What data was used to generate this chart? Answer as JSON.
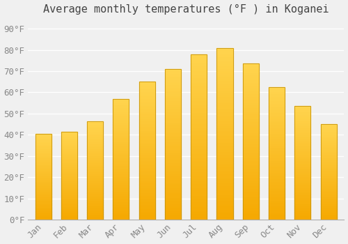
{
  "months": [
    "Jan",
    "Feb",
    "Mar",
    "Apr",
    "May",
    "Jun",
    "Jul",
    "Aug",
    "Sep",
    "Oct",
    "Nov",
    "Dec"
  ],
  "values": [
    40.5,
    41.5,
    46.5,
    57.0,
    65.0,
    71.0,
    78.0,
    81.0,
    73.5,
    62.5,
    53.5,
    45.0
  ],
  "bar_color_bottom": "#F5A800",
  "bar_color_top": "#FFD44E",
  "bar_edge_color": "#C8940A",
  "title": "Average monthly temperatures (°F ) in Koganei",
  "ylabel_ticks": [
    "0°F",
    "10°F",
    "20°F",
    "30°F",
    "40°F",
    "50°F",
    "60°F",
    "70°F",
    "80°F",
    "90°F"
  ],
  "ytick_values": [
    0,
    10,
    20,
    30,
    40,
    50,
    60,
    70,
    80,
    90
  ],
  "ylim": [
    0,
    95
  ],
  "background_color": "#f0f0f0",
  "grid_color": "#ffffff",
  "title_fontsize": 11,
  "tick_fontsize": 9,
  "title_color": "#444444",
  "tick_color": "#888888",
  "n_gradient_steps": 100
}
